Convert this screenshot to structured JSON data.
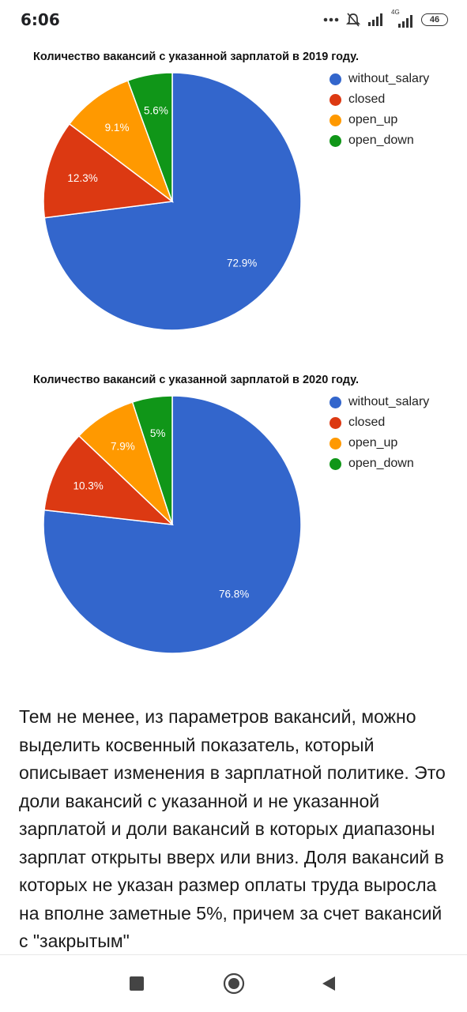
{
  "status_bar": {
    "time": "6:06",
    "network_label": "4G",
    "battery": "46"
  },
  "charts": [
    {
      "type": "pie",
      "title": "Количество вакансий с указанной зарплатой в 2019 году.",
      "slices": [
        {
          "name": "without_salary",
          "value": 72.9,
          "label": "72.9%",
          "color": "#3366cc"
        },
        {
          "name": "closed",
          "value": 12.3,
          "label": "12.3%",
          "color": "#dc3912"
        },
        {
          "name": "open_up",
          "value": 9.1,
          "label": "9.1%",
          "color": "#ff9900"
        },
        {
          "name": "open_down",
          "value": 5.6,
          "label": "5.6%",
          "color": "#109618"
        }
      ]
    },
    {
      "type": "pie",
      "title": "Количество вакансий с указанной зарплатой в 2020 году.",
      "slices": [
        {
          "name": "without_salary",
          "value": 76.8,
          "label": "76.8%",
          "color": "#3366cc"
        },
        {
          "name": "closed",
          "value": 10.3,
          "label": "10.3%",
          "color": "#dc3912"
        },
        {
          "name": "open_up",
          "value": 7.9,
          "label": "7.9%",
          "color": "#ff9900"
        },
        {
          "name": "open_down",
          "value": 5,
          "label": "5%",
          "color": "#109618"
        }
      ]
    }
  ],
  "chart_data": [
    {
      "type": "pie",
      "title": "Количество вакансий с указанной зарплатой в 2019 году.",
      "categories": [
        "without_salary",
        "closed",
        "open_up",
        "open_down"
      ],
      "values": [
        72.9,
        12.3,
        9.1,
        5.6
      ],
      "legend": "right"
    },
    {
      "type": "pie",
      "title": "Количество вакансий с указанной зарплатой в 2020 году.",
      "categories": [
        "without_salary",
        "closed",
        "open_up",
        "open_down"
      ],
      "values": [
        76.8,
        10.3,
        7.9,
        5
      ],
      "legend": "right"
    }
  ],
  "article": {
    "text": "Тем не менее, из параметров вакансий, можно выделить косвенный показатель, который описывает изменения в зарплатной политике. Это доли вакансий с указанной и не указанной зарплатой и доли вакансий в которых диапазоны зарплат открыты вверх или вниз. Доля вакансий в которых не указан размер оплаты труда выросла на вполне заметные 5%, причем за счет вакансий с \"закрытым\""
  },
  "nav_bar": {
    "recents_icon": "square-icon",
    "home_icon": "circle-icon",
    "back_icon": "triangle-back-icon"
  }
}
